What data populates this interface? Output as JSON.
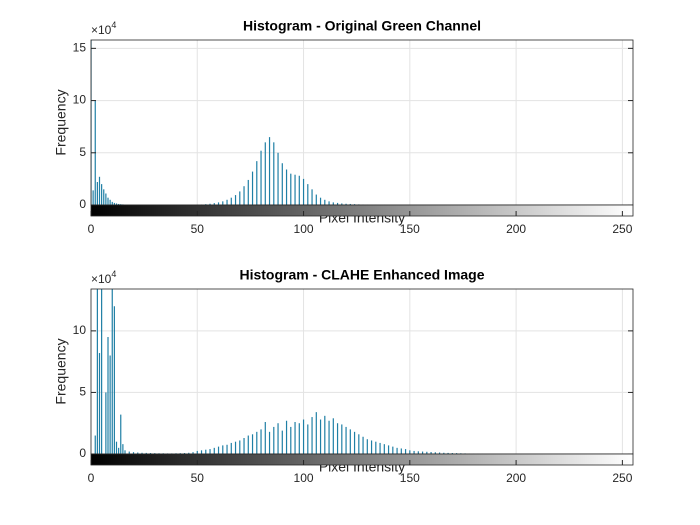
{
  "chart_data": [
    {
      "type": "bar",
      "title": "Histogram - Original Green Channel",
      "x_label": "Pixel Intensity",
      "y_label": "Frequency",
      "y_exponent": {
        "base": "×10",
        "power": "4"
      },
      "color": "#1f7fa5",
      "grid": true,
      "xlim": [
        0,
        255
      ],
      "xticks": [
        0,
        50,
        100,
        150,
        200,
        250
      ],
      "ylim": [
        0,
        158000
      ],
      "yticks": [
        0,
        {
          "value": 50000,
          "label": "5"
        },
        {
          "value": 100000,
          "label": "10"
        },
        {
          "value": 150000,
          "label": "15"
        }
      ],
      "x": [
        0,
        1,
        2,
        3,
        4,
        5,
        6,
        7,
        8,
        9,
        10,
        11,
        12,
        13,
        14,
        15,
        50,
        52,
        54,
        56,
        58,
        60,
        62,
        64,
        66,
        68,
        70,
        72,
        74,
        76,
        78,
        80,
        82,
        84,
        86,
        88,
        90,
        92,
        94,
        96,
        98,
        100,
        102,
        104,
        106,
        108,
        110,
        112,
        114,
        116,
        118,
        120,
        122,
        124,
        126,
        128,
        130,
        134,
        138
      ],
      "values": [
        160000,
        14000,
        100000,
        22000,
        27000,
        20000,
        15000,
        11000,
        7000,
        5000,
        3000,
        2000,
        1500,
        1000,
        800,
        600,
        300,
        500,
        800,
        1200,
        1800,
        2500,
        3500,
        5000,
        7000,
        9500,
        13000,
        18000,
        24000,
        32000,
        42000,
        52000,
        60000,
        65000,
        60000,
        50000,
        40000,
        34000,
        30000,
        29000,
        28000,
        25000,
        20000,
        15000,
        10000,
        7000,
        5000,
        3500,
        2500,
        2000,
        1500,
        1200,
        1000,
        800,
        600,
        500,
        400,
        300,
        200
      ]
    },
    {
      "type": "bar",
      "title": "Histogram - CLAHE Enhanced Image",
      "x_label": "Pixel Intensity",
      "y_label": "Frequency",
      "y_exponent": {
        "base": "×10",
        "power": "4"
      },
      "color": "#1f7fa5",
      "grid": true,
      "xlim": [
        0,
        255
      ],
      "xticks": [
        0,
        50,
        100,
        150,
        200,
        250
      ],
      "ylim": [
        0,
        134000
      ],
      "yticks": [
        0,
        {
          "value": 50000,
          "label": "5"
        },
        {
          "value": 100000,
          "label": "10"
        }
      ],
      "x": [
        2,
        3,
        4,
        5,
        7,
        8,
        9,
        10,
        11,
        12,
        13,
        14,
        15,
        16,
        18,
        20,
        22,
        24,
        26,
        28,
        30,
        32,
        34,
        36,
        38,
        40,
        42,
        44,
        46,
        48,
        50,
        52,
        54,
        56,
        58,
        60,
        62,
        64,
        66,
        68,
        70,
        72,
        74,
        76,
        78,
        80,
        82,
        84,
        86,
        88,
        90,
        92,
        94,
        96,
        98,
        100,
        102,
        104,
        106,
        108,
        110,
        112,
        114,
        116,
        118,
        120,
        122,
        124,
        126,
        128,
        130,
        132,
        134,
        136,
        138,
        140,
        142,
        144,
        146,
        148,
        150,
        152,
        154,
        156,
        158,
        160,
        162,
        164,
        166,
        168,
        170,
        172,
        174,
        176,
        178,
        180,
        182,
        184
      ],
      "values": [
        15000,
        135000,
        82000,
        135000,
        50000,
        95000,
        80000,
        135000,
        120000,
        10000,
        5000,
        32000,
        8000,
        3000,
        2000,
        1500,
        1200,
        1000,
        900,
        800,
        700,
        600,
        600,
        500,
        500,
        600,
        700,
        800,
        1000,
        1500,
        2500,
        3000,
        3500,
        4000,
        5000,
        6000,
        7000,
        7500,
        9000,
        10000,
        11000,
        13000,
        15000,
        16000,
        18000,
        20000,
        26000,
        18000,
        22000,
        25000,
        19000,
        27000,
        22000,
        26000,
        25000,
        28000,
        24000,
        30000,
        34000,
        28000,
        31000,
        27000,
        29000,
        25000,
        24000,
        22000,
        20000,
        18000,
        16000,
        14000,
        12000,
        11000,
        10000,
        9000,
        8000,
        7000,
        6000,
        5000,
        4500,
        4000,
        3000,
        2500,
        2200,
        2000,
        1800,
        1600,
        1400,
        1200,
        1000,
        900,
        800,
        700,
        600,
        500,
        400,
        300,
        250,
        200
      ]
    }
  ]
}
